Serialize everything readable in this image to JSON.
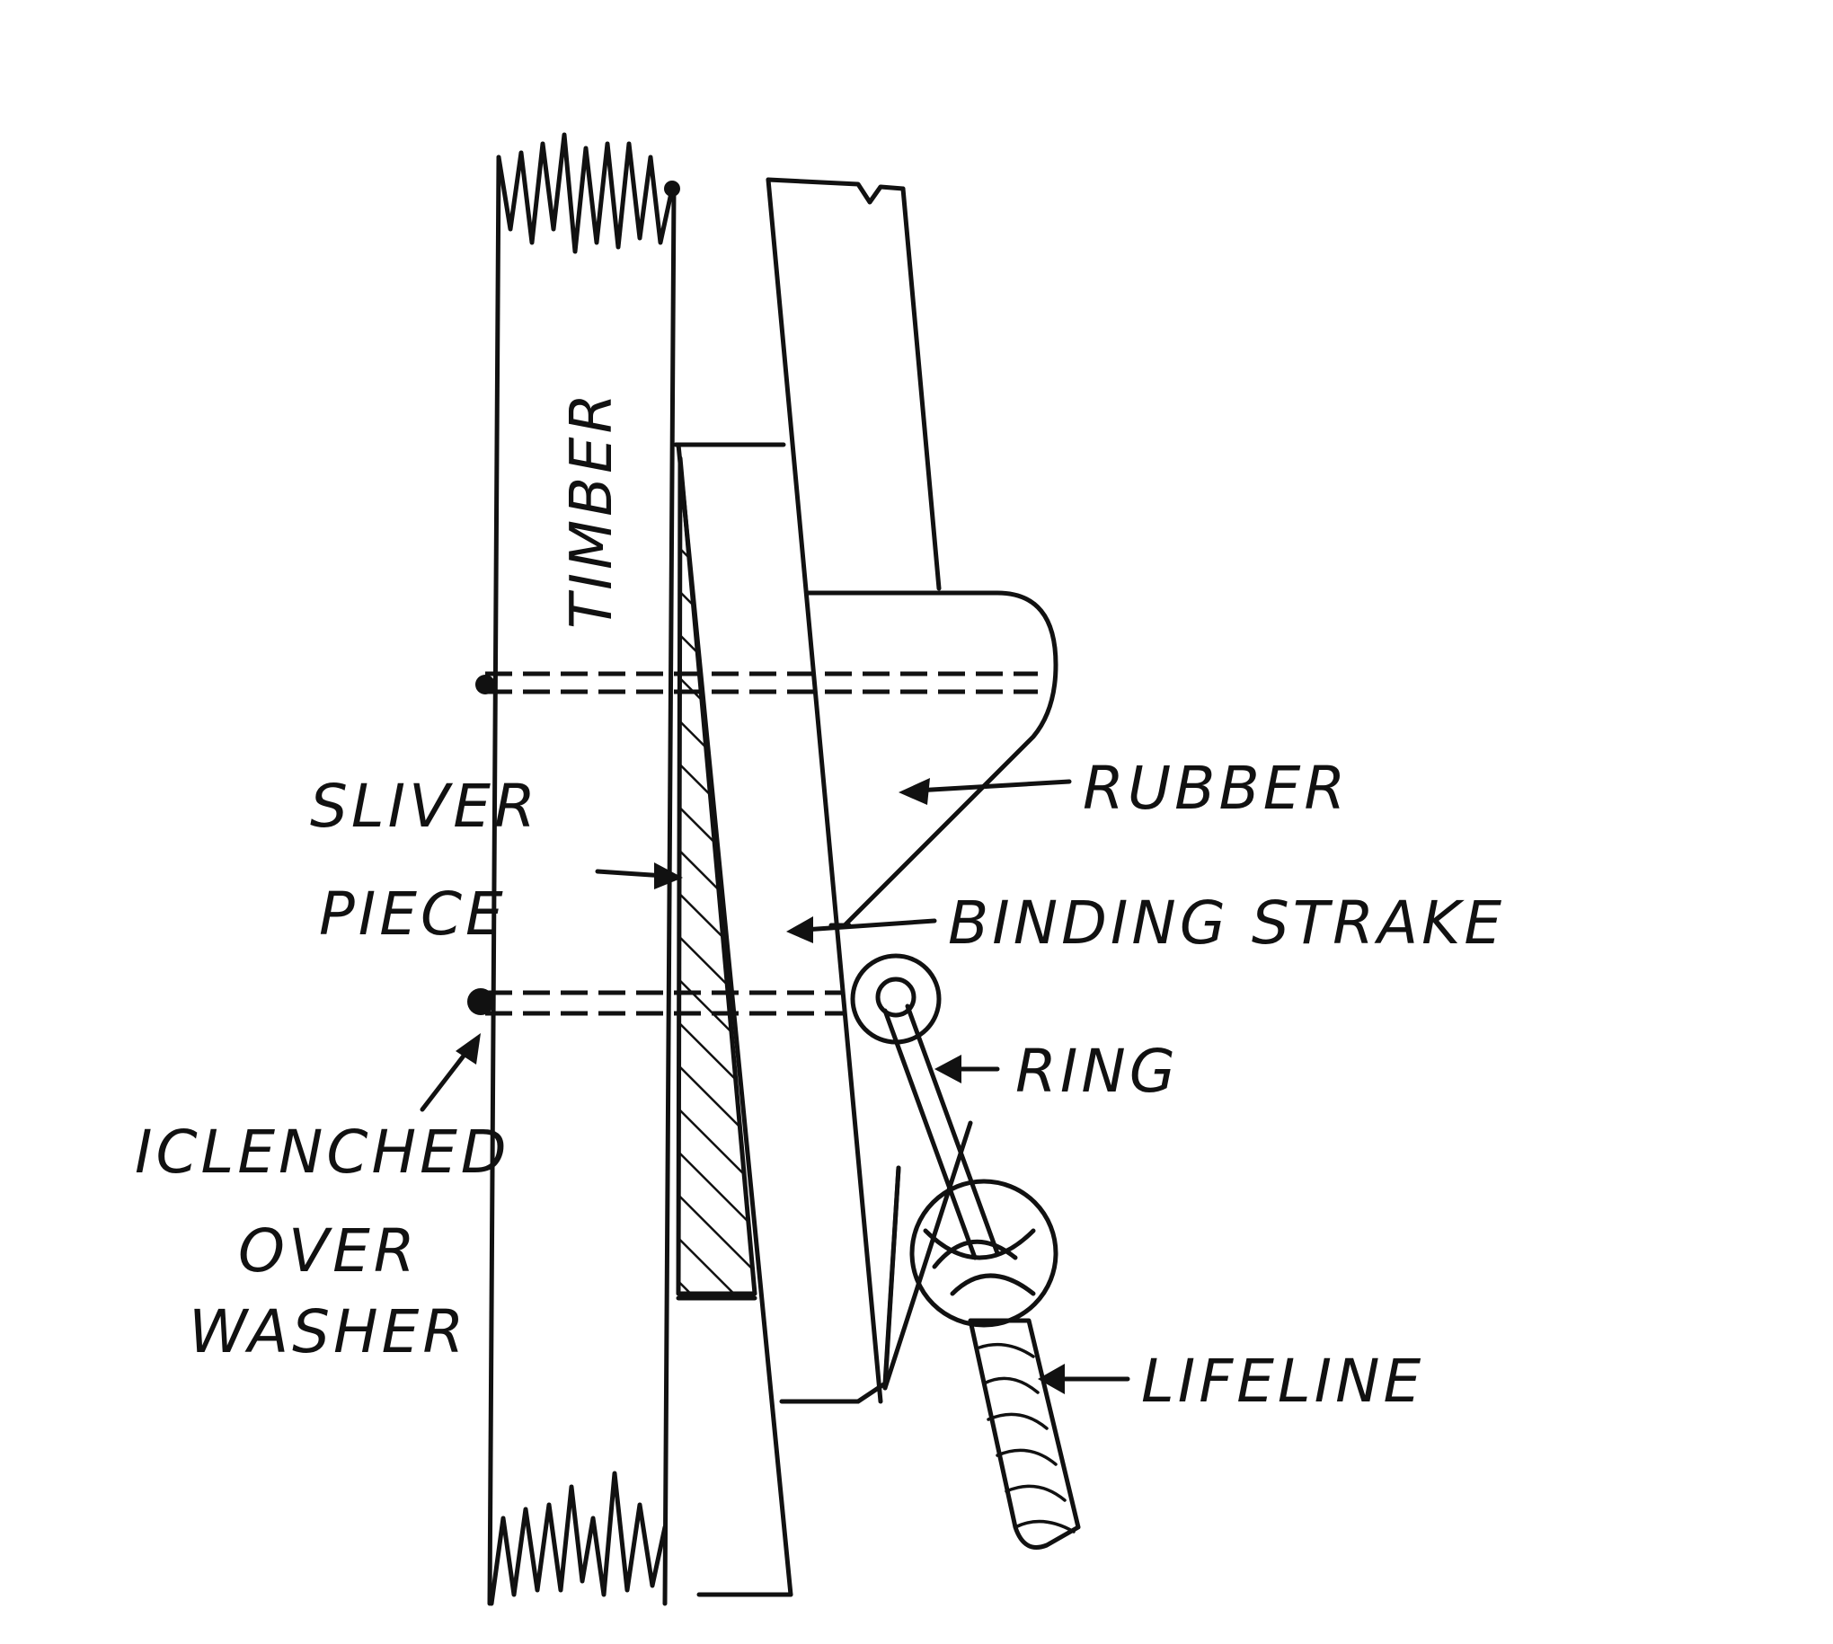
{
  "labels": {
    "timber": "TIMBER",
    "sliver_1": "SLIVER",
    "sliver_2": "PIECE",
    "rubber": "RUBBER",
    "binding_strake": "BINDING STRAKE",
    "ring": "RING",
    "clenched_1": "ICLENCHED",
    "clenched_2": "OVER",
    "clenched_3": "WASHER",
    "lifeline": "LIFELINE"
  },
  "colors": {
    "ink": "#111111",
    "paper": "#ffffff"
  }
}
